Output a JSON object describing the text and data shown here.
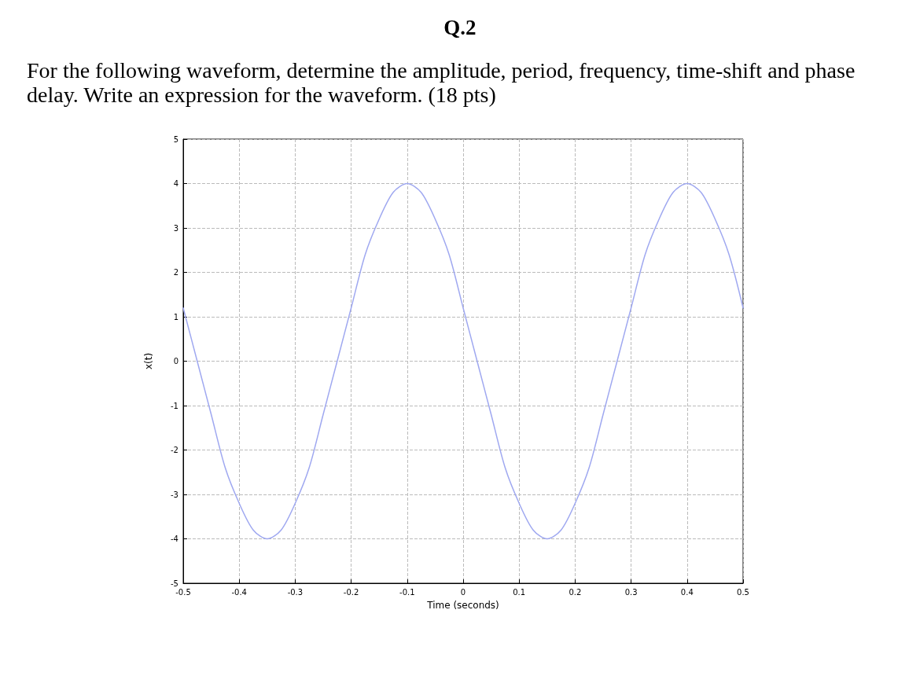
{
  "chart_data": {
    "type": "line",
    "title": "Q.2",
    "subtitle": "For the following waveform, determine the amplitude, period, frequency, time-shift and phase delay. Write an expression for the waveform. (18 pts)",
    "xlabel": "Time (seconds)",
    "ylabel": "x(t)",
    "x": [
      -0.5,
      -0.475,
      -0.45,
      -0.425,
      -0.4,
      -0.375,
      -0.35,
      -0.325,
      -0.3,
      -0.275,
      -0.25,
      -0.225,
      -0.2,
      -0.175,
      -0.15,
      -0.125,
      -0.1,
      -0.075,
      -0.05,
      -0.025,
      0,
      0.025,
      0.05,
      0.075,
      0.1,
      0.125,
      0.15,
      0.175,
      0.2,
      0.225,
      0.25,
      0.275,
      0.3,
      0.325,
      0.35,
      0.375,
      0.4,
      0.425,
      0.45,
      0.475,
      0.5
    ],
    "series": [
      {
        "color": "#9fa8f0",
        "values": [
          1.2,
          0,
          -1.2,
          -2.4,
          -3.2,
          -3.8,
          -4,
          -3.8,
          -3.2,
          -2.4,
          -1.2,
          0,
          1.2,
          2.4,
          3.2,
          3.8,
          4,
          3.8,
          3.2,
          2.4,
          1.2,
          0,
          -1.2,
          -2.4,
          -3.2,
          -3.8,
          -4,
          -3.8,
          -3.2,
          -2.4,
          -1.2,
          0,
          1.2,
          2.4,
          3.2,
          3.8,
          4,
          3.8,
          3.2,
          2.4,
          1.2
        ]
      }
    ],
    "xlim": [
      -0.5,
      0.5
    ],
    "xticks": [
      -0.5,
      -0.4,
      -0.3,
      -0.2,
      -0.1,
      0,
      0.1,
      0.2,
      0.3,
      0.4,
      0.5
    ],
    "ylim": [
      -5,
      5
    ],
    "yticks": [
      -5,
      -4,
      -3,
      -2,
      -1,
      0,
      1,
      2,
      3,
      4,
      5
    ],
    "grid": true,
    "marker": "none",
    "line_style": "solid"
  }
}
